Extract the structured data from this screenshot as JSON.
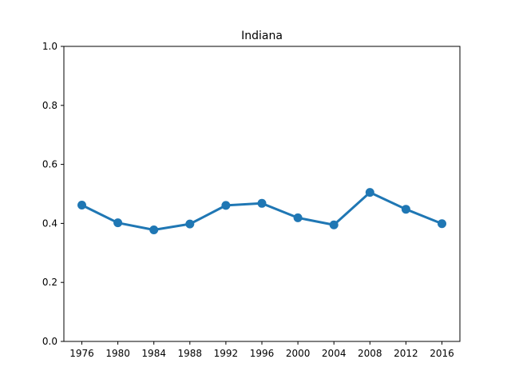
{
  "chart_data": {
    "type": "line",
    "title": "Indiana",
    "xlabel": "",
    "ylabel": "",
    "categories": [
      "1976",
      "1980",
      "1984",
      "1988",
      "1992",
      "1996",
      "2000",
      "2004",
      "2008",
      "2012",
      "2016"
    ],
    "series": [
      {
        "values": [
          0.462,
          0.402,
          0.378,
          0.398,
          0.461,
          0.468,
          0.419,
          0.395,
          0.505,
          0.448,
          0.399
        ],
        "color": "#1f77b4"
      }
    ],
    "ylim": [
      0.0,
      1.0
    ],
    "yticks": [
      0.0,
      0.2,
      0.4,
      0.6,
      0.8,
      1.0
    ],
    "ytick_labels": [
      "0.0",
      "0.2",
      "0.4",
      "0.6",
      "0.8",
      "1.0"
    ],
    "grid": false,
    "legend": "none"
  }
}
